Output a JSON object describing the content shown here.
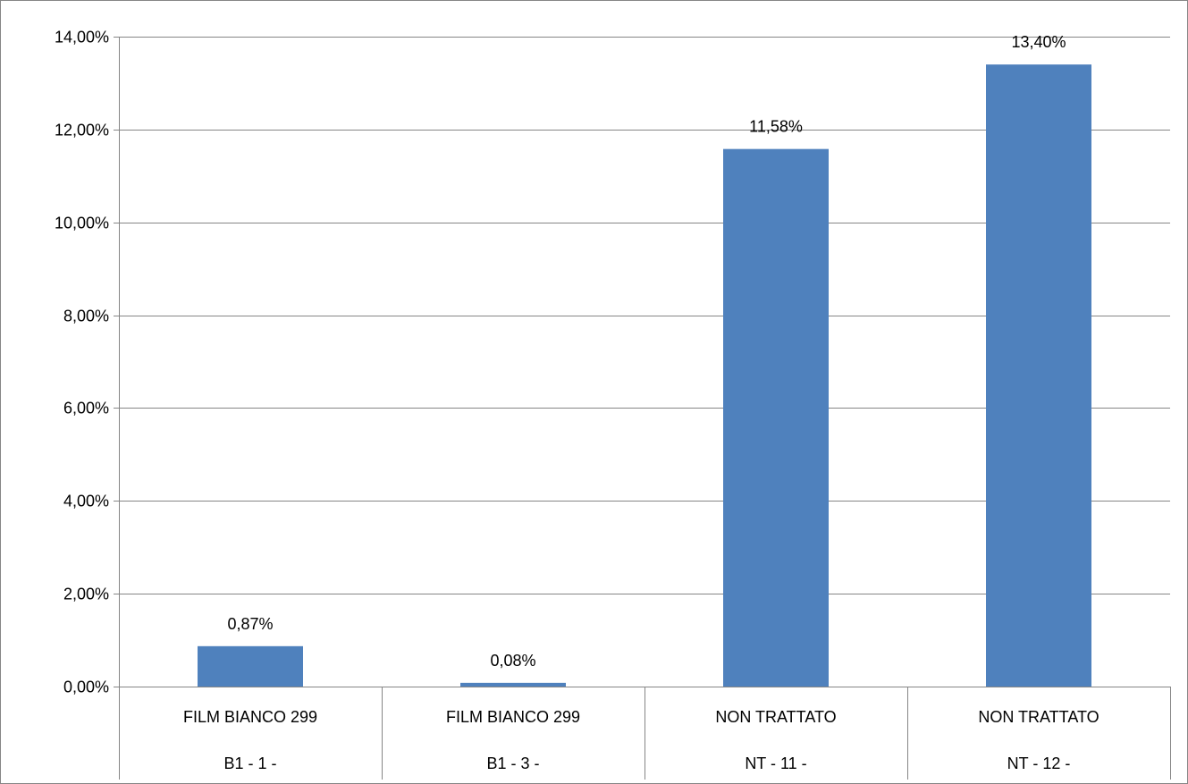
{
  "chart_data": {
    "type": "bar",
    "categories": [
      [
        "FILM BIANCO 299",
        "B1 - 1 -"
      ],
      [
        "FILM BIANCO 299",
        "B1 - 3 -"
      ],
      [
        "NON TRATTATO",
        "NT - 11 -"
      ],
      [
        "NON TRATTATO",
        "NT - 12 -"
      ]
    ],
    "values": [
      0.87,
      0.08,
      11.58,
      13.4
    ],
    "value_labels": [
      "0,87%",
      "0,08%",
      "11,58%",
      "13,40%"
    ],
    "y_ticks": [
      0,
      2,
      4,
      6,
      8,
      10,
      12,
      14
    ],
    "y_tick_labels": [
      "0,00%",
      "2,00%",
      "4,00%",
      "6,00%",
      "8,00%",
      "10,00%",
      "12,00%",
      "14,00%"
    ],
    "ylim": [
      0,
      14
    ],
    "title": "",
    "xlabel": "",
    "ylabel": "",
    "grid": true,
    "legend": "none",
    "colors": {
      "bar": "#4F81BD",
      "grid": "#868686",
      "axis": "#868686",
      "border": "#868686"
    }
  }
}
